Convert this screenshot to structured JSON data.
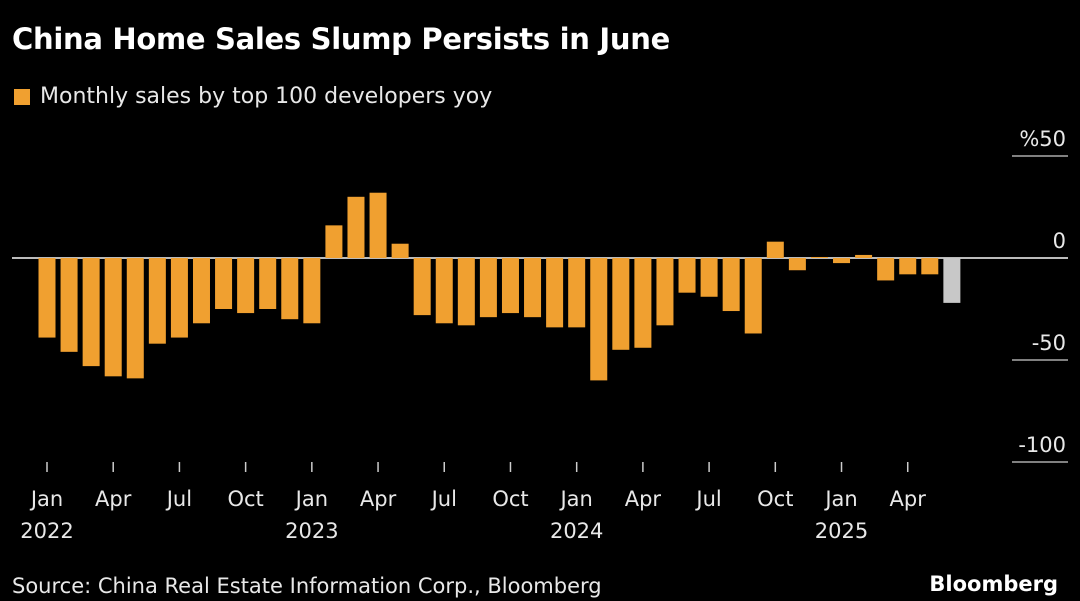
{
  "title": "China Home Sales Slump Persists in June",
  "source": "Source: China Real Estate Information Corp., Bloomberg",
  "brand": "Bloomberg",
  "colors": {
    "bar": "#f0a030",
    "latest": "#c8c8c8",
    "axis": "#bbbbbb"
  },
  "chart_data": {
    "type": "bar",
    "title": "China Home Sales Slump Persists in June",
    "legend": [
      "Monthly sales by top 100 developers yoy"
    ],
    "legend_position": "top-left",
    "ylabel": "%",
    "ylim": [
      -100,
      50
    ],
    "yticks": [
      {
        "v": 50,
        "label": "%50"
      },
      {
        "v": 0,
        "label": "0"
      },
      {
        "v": -50,
        "label": "-50"
      },
      {
        "v": -100,
        "label": "-100"
      }
    ],
    "xtick_labels": [
      {
        "i": 0,
        "m": "Jan",
        "y": "2022"
      },
      {
        "i": 3,
        "m": "Apr",
        "y": ""
      },
      {
        "i": 6,
        "m": "Jul",
        "y": ""
      },
      {
        "i": 9,
        "m": "Oct",
        "y": ""
      },
      {
        "i": 12,
        "m": "Jan",
        "y": "2023"
      },
      {
        "i": 15,
        "m": "Apr",
        "y": ""
      },
      {
        "i": 18,
        "m": "Jul",
        "y": ""
      },
      {
        "i": 21,
        "m": "Oct",
        "y": ""
      },
      {
        "i": 24,
        "m": "Jan",
        "y": "2024"
      },
      {
        "i": 27,
        "m": "Apr",
        "y": ""
      },
      {
        "i": 30,
        "m": "Jul",
        "y": ""
      },
      {
        "i": 33,
        "m": "Oct",
        "y": ""
      },
      {
        "i": 36,
        "m": "Jan",
        "y": "2025"
      },
      {
        "i": 39,
        "m": "Apr",
        "y": ""
      }
    ],
    "categories": [
      "2022-01",
      "2022-02",
      "2022-03",
      "2022-04",
      "2022-05",
      "2022-06",
      "2022-07",
      "2022-08",
      "2022-09",
      "2022-10",
      "2022-11",
      "2022-12",
      "2023-01",
      "2023-02",
      "2023-03",
      "2023-04",
      "2023-05",
      "2023-06",
      "2023-07",
      "2023-08",
      "2023-09",
      "2023-10",
      "2023-11",
      "2023-12",
      "2024-01",
      "2024-02",
      "2024-03",
      "2024-04",
      "2024-05",
      "2024-06",
      "2024-07",
      "2024-08",
      "2024-09",
      "2024-10",
      "2024-11",
      "2024-12",
      "2025-01",
      "2025-02",
      "2025-03",
      "2025-04",
      "2025-05",
      "2025-06"
    ],
    "values": [
      -39,
      -46,
      -53,
      -58,
      -59,
      -42,
      -39,
      -32,
      -25,
      -27,
      -25,
      -30,
      -32,
      16,
      30,
      32,
      7,
      -28,
      -32,
      -33,
      -29,
      -27,
      -29,
      -34,
      -34,
      -60,
      -45,
      -44,
      -33,
      -17,
      -19,
      -26,
      -37,
      8,
      -6,
      0.5,
      -2.5,
      1.5,
      -11,
      -8,
      -8,
      -22
    ],
    "highlight_last": true
  }
}
